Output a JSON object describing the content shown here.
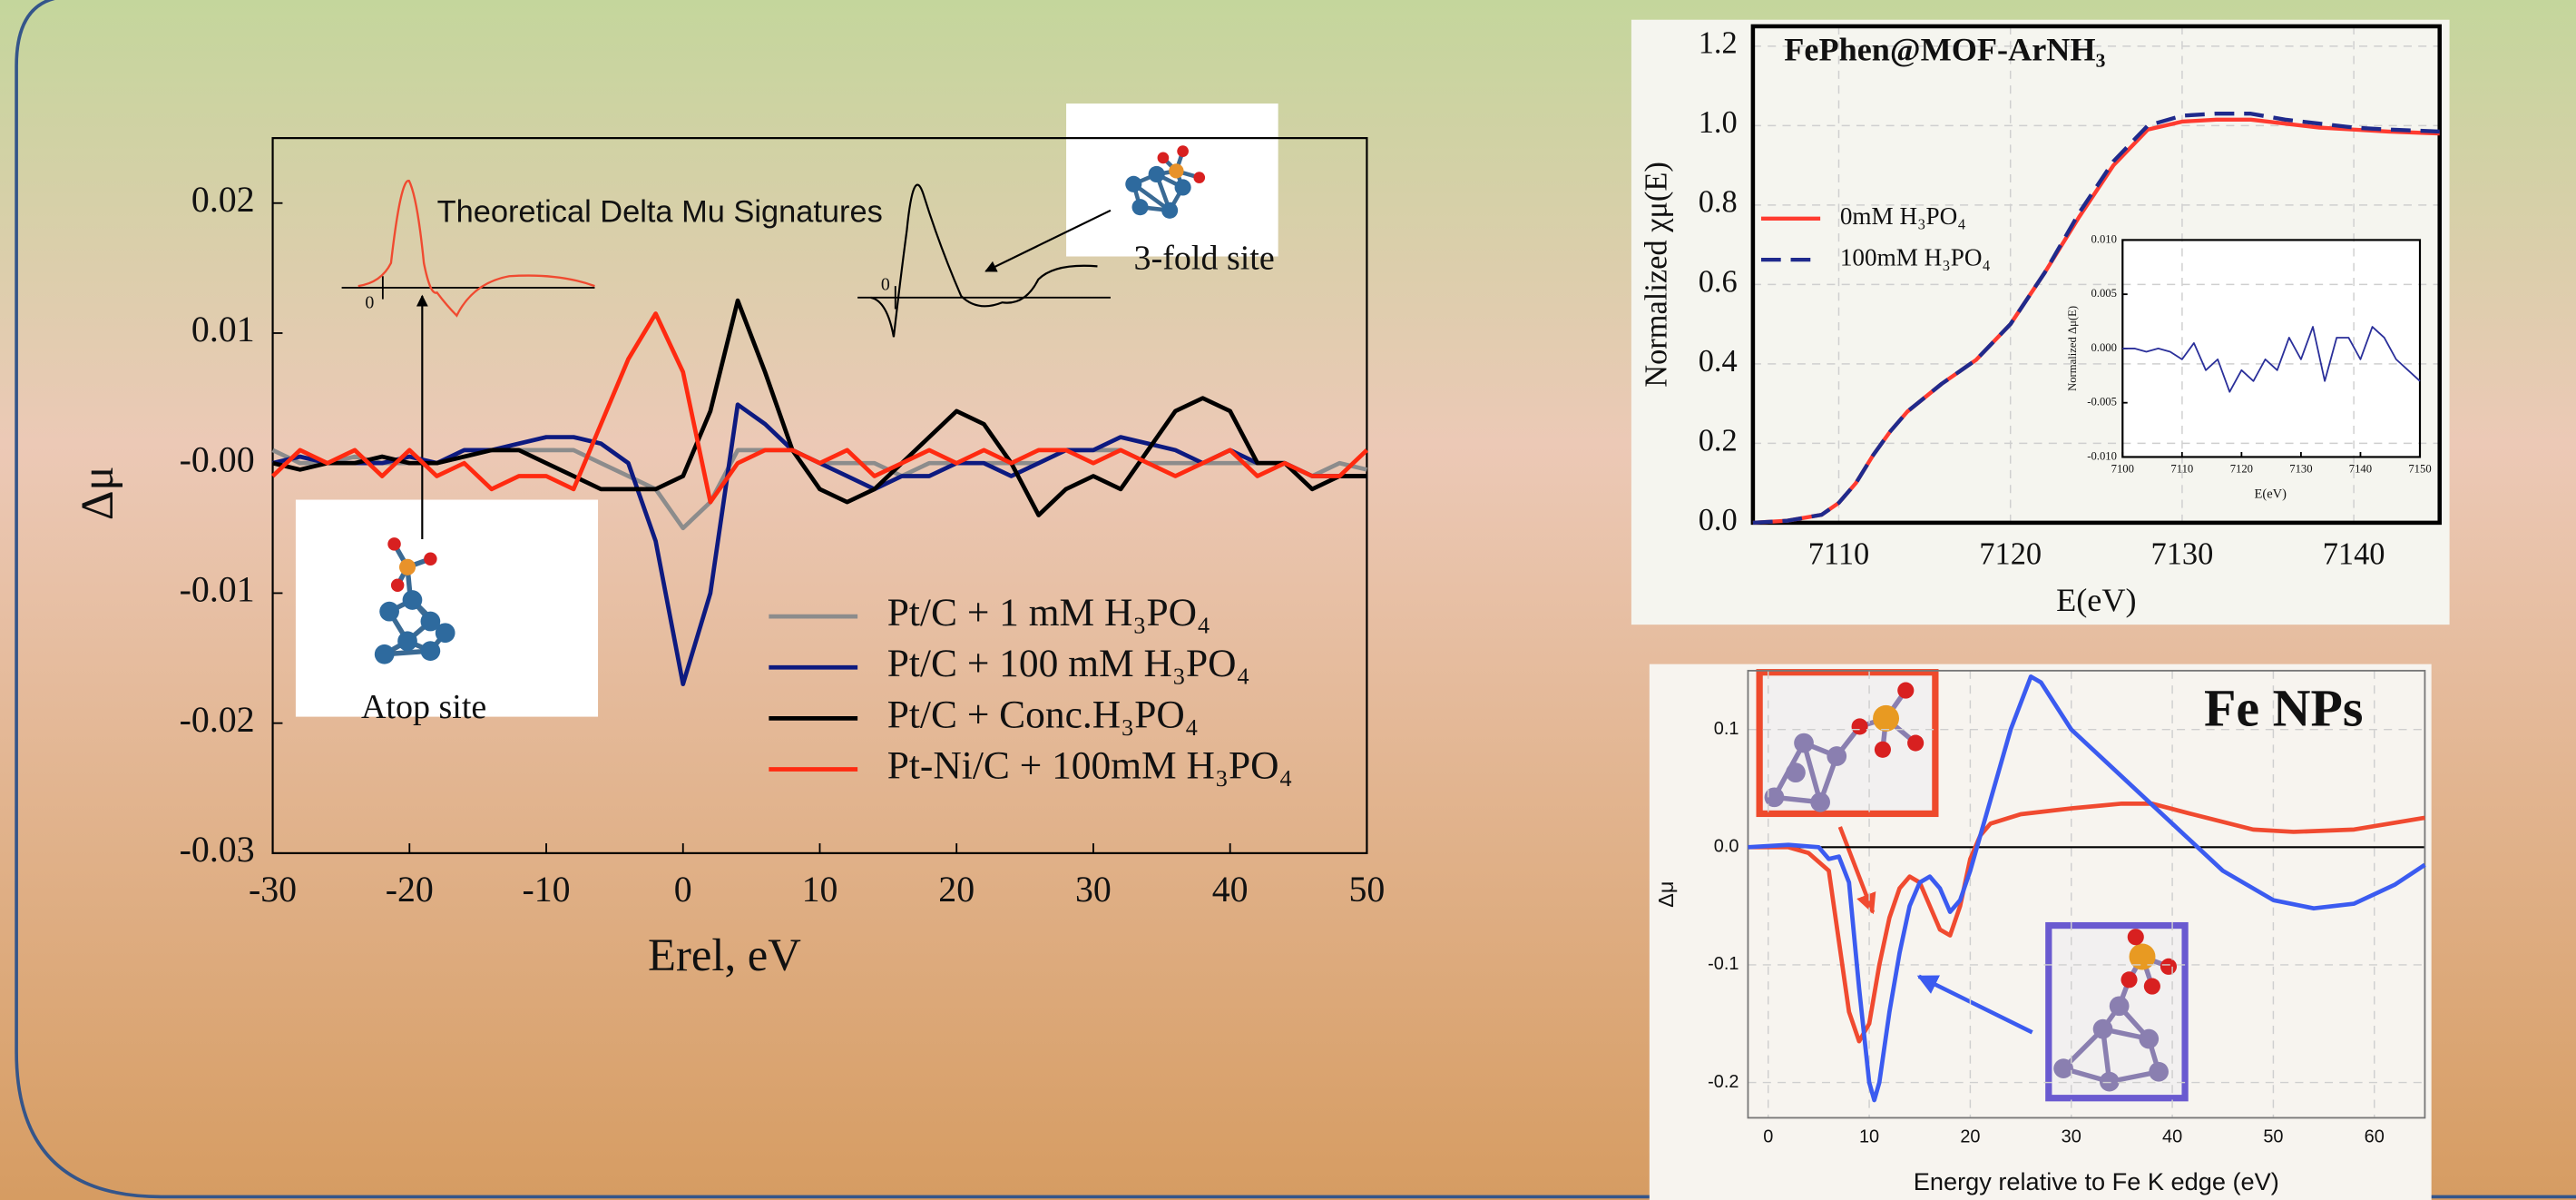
{
  "chart_data": [
    {
      "type": "line",
      "xlabel": "Erel, eV",
      "ylabel": "Δμ",
      "annotations": [
        "Theoretical Delta Mu Signatures",
        "Atop site",
        "3-fold site",
        "0",
        "0"
      ],
      "x": [
        -30,
        -28,
        -26,
        -24,
        -22,
        -20,
        -18,
        -16,
        -14,
        -12,
        -10,
        -8,
        -6,
        -4,
        -2,
        0,
        2,
        4,
        6,
        8,
        10,
        12,
        14,
        16,
        18,
        20,
        22,
        24,
        26,
        28,
        30,
        32,
        34,
        36,
        38,
        40,
        42,
        44,
        46,
        48,
        50
      ],
      "xlim": [
        -30,
        50
      ],
      "ylim": [
        -0.03,
        0.025
      ],
      "xticks": [
        -30,
        -20,
        -10,
        0,
        10,
        20,
        30,
        40,
        50
      ],
      "yticks": [
        0.02,
        0.01,
        {
          "value": 0,
          "label": "-0.00"
        },
        -0.01,
        -0.02,
        -0.03
      ],
      "grid": false,
      "series": [
        {
          "name": "Pt/C + 1 mM H₃PO₄",
          "color": "#8c8c8c",
          "values": [
            0.001,
            0,
            0,
            0.0005,
            0,
            0,
            0,
            0.0005,
            0.001,
            0.001,
            0.001,
            0.001,
            0,
            -0.001,
            -0.002,
            -0.005,
            -0.003,
            0.001,
            0.001,
            0.001,
            0,
            0,
            0,
            -0.001,
            0,
            0,
            0,
            0,
            0,
            0.001,
            0.001,
            0.001,
            0,
            0,
            0,
            0,
            0,
            0,
            -0.001,
            0,
            -0.0005
          ]
        },
        {
          "name": "Pt/C + 100 mM H₃PO₄",
          "color": "#0d1a80",
          "values": [
            0,
            0.0005,
            0,
            0,
            0,
            0.0005,
            0,
            0.001,
            0.001,
            0.0015,
            0.002,
            0.002,
            0.0015,
            0,
            -0.006,
            -0.017,
            -0.01,
            0.0045,
            0.003,
            0.001,
            0,
            -0.001,
            -0.002,
            -0.001,
            -0.001,
            0,
            0,
            -0.001,
            0,
            0.001,
            0.001,
            0.002,
            0.0015,
            0.001,
            0,
            0.001,
            0,
            0,
            -0.001,
            -0.001,
            -0.001
          ]
        },
        {
          "name": "Pt/C + Conc.H₃PO₄",
          "color": "#000000",
          "values": [
            0,
            -0.0005,
            0,
            0,
            0.0005,
            0,
            0,
            0.0005,
            0.001,
            0.001,
            0,
            -0.001,
            -0.002,
            -0.002,
            -0.002,
            -0.001,
            0.004,
            0.0125,
            0.007,
            0.001,
            -0.002,
            -0.003,
            -0.002,
            0,
            0.002,
            0.004,
            0.003,
            0,
            -0.004,
            -0.002,
            -0.001,
            -0.002,
            0.001,
            0.004,
            0.005,
            0.004,
            0,
            0,
            -0.002,
            -0.001,
            -0.001
          ]
        },
        {
          "name": "Pt-Ni/C + 100mM H₃PO₄",
          "color": "#ff2a10",
          "values": [
            -0.001,
            0.001,
            0,
            0.001,
            -0.001,
            0.001,
            -0.001,
            0,
            -0.002,
            -0.001,
            -0.001,
            -0.002,
            0.003,
            0.008,
            0.0115,
            0.007,
            -0.003,
            0,
            0.001,
            0.001,
            0,
            0.001,
            -0.001,
            0,
            0.001,
            0,
            0.001,
            0,
            0.001,
            0.001,
            0,
            0.001,
            0,
            -0.001,
            0,
            0.001,
            -0.001,
            0,
            -0.001,
            -0.001,
            0.001
          ]
        }
      ]
    },
    {
      "type": "line",
      "title": "FePhen@MOF-ArNH₃",
      "xlabel": "E(eV)",
      "ylabel": "Normalized χμ(E)",
      "x": [
        7105,
        7107,
        7109,
        7110,
        7111,
        7112,
        7113,
        7114,
        7116,
        7118,
        7120,
        7122,
        7124,
        7126,
        7128,
        7130,
        7132,
        7134,
        7136,
        7138,
        7140,
        7142,
        7145
      ],
      "xlim": [
        7105,
        7145
      ],
      "ylim": [
        0,
        1.25
      ],
      "xticks": [
        7110,
        7120,
        7130,
        7140
      ],
      "yticks": [
        {
          "value": 0,
          "label": "0.0"
        },
        0.2,
        0.4,
        0.6,
        0.8,
        {
          "value": 1,
          "label": "1.0"
        },
        1.2
      ],
      "grid": true,
      "series": [
        {
          "name": "0mM H₃PO₄",
          "color": "#ff3b30",
          "line_style": "solid",
          "values": [
            0,
            0.005,
            0.02,
            0.05,
            0.1,
            0.17,
            0.23,
            0.28,
            0.35,
            0.41,
            0.5,
            0.63,
            0.77,
            0.9,
            0.99,
            1.01,
            1.015,
            1.015,
            1.005,
            0.995,
            0.99,
            0.985,
            0.98
          ]
        },
        {
          "name": "100mM H₃PO₄",
          "color": "#1f2a8c",
          "line_style": "dashed",
          "values": [
            0,
            0.005,
            0.02,
            0.05,
            0.1,
            0.17,
            0.23,
            0.28,
            0.35,
            0.41,
            0.5,
            0.63,
            0.78,
            0.91,
            1.0,
            1.025,
            1.03,
            1.03,
            1.015,
            1.005,
            0.995,
            0.99,
            0.985
          ]
        }
      ]
    },
    {
      "type": "line",
      "xlabel": "E(eV)",
      "ylabel": "Normalized Δμ(E)",
      "x": [
        7100,
        7102,
        7104,
        7106,
        7108,
        7110,
        7112,
        7114,
        7116,
        7118,
        7120,
        7122,
        7124,
        7126,
        7128,
        7130,
        7132,
        7134,
        7136,
        7138,
        7140,
        7142,
        7144,
        7146,
        7148,
        7150
      ],
      "xlim": [
        7100,
        7150
      ],
      "ylim": [
        -0.01,
        0.01
      ],
      "xticks": [
        7100,
        7110,
        7120,
        7130,
        7140,
        7150
      ],
      "yticks": [
        {
          "value": 0.01,
          "label": "0.010"
        },
        0.005,
        {
          "value": 0,
          "label": "0.000"
        },
        -0.005,
        {
          "value": -0.01,
          "label": "-0.010"
        }
      ],
      "grid": false,
      "series": [
        {
          "color": "#2a2f9a",
          "values": [
            0,
            0,
            -0.0003,
            0,
            -0.0003,
            -0.001,
            0.0005,
            -0.002,
            -0.001,
            -0.004,
            -0.002,
            -0.003,
            -0.001,
            -0.002,
            0.001,
            -0.001,
            0.002,
            -0.003,
            0.001,
            0.001,
            -0.001,
            0.002,
            0.001,
            -0.001,
            -0.002,
            -0.003
          ]
        }
      ]
    },
    {
      "type": "line",
      "title": "Fe NPs",
      "xlabel": "Energy relative to Fe K edge (eV)",
      "ylabel": "Δμ",
      "xlim": [
        -2,
        65
      ],
      "ylim": [
        -0.23,
        0.15
      ],
      "xticks": [
        0,
        10,
        20,
        30,
        40,
        50,
        60
      ],
      "yticks": [
        0.1,
        {
          "value": 0,
          "label": "0.0"
        },
        -0.1,
        -0.2
      ],
      "grid": true,
      "series": [
        {
          "color": "#f04a30",
          "x": [
            -2,
            2,
            4,
            6,
            7,
            8,
            9,
            10,
            11,
            12,
            13,
            14,
            15,
            16,
            17,
            18,
            19,
            20,
            21,
            22,
            25,
            30,
            35,
            38,
            42,
            48,
            52,
            58,
            65
          ],
          "values": [
            0,
            0,
            -0.005,
            -0.02,
            -0.08,
            -0.14,
            -0.165,
            -0.15,
            -0.1,
            -0.06,
            -0.035,
            -0.025,
            -0.03,
            -0.05,
            -0.07,
            -0.075,
            -0.05,
            -0.01,
            0.01,
            0.02,
            0.028,
            0.033,
            0.037,
            0.037,
            0.028,
            0.015,
            0.013,
            0.015,
            0.025
          ]
        },
        {
          "color": "#3b5bf0",
          "x": [
            -2,
            2,
            5,
            6,
            7,
            8,
            9,
            10,
            10.5,
            11,
            12,
            13,
            14,
            15,
            16,
            17,
            18,
            19,
            20,
            22,
            24,
            26,
            27,
            30,
            35,
            40,
            45,
            50,
            54,
            58,
            62,
            65
          ],
          "values": [
            0,
            0.002,
            0,
            -0.01,
            -0.008,
            -0.03,
            -0.12,
            -0.2,
            -0.215,
            -0.2,
            -0.14,
            -0.09,
            -0.05,
            -0.03,
            -0.025,
            -0.035,
            -0.055,
            -0.045,
            -0.02,
            0.04,
            0.1,
            0.145,
            0.14,
            0.1,
            0.06,
            0.02,
            -0.02,
            -0.045,
            -0.052,
            -0.048,
            -0.032,
            -0.015
          ]
        }
      ]
    }
  ]
}
